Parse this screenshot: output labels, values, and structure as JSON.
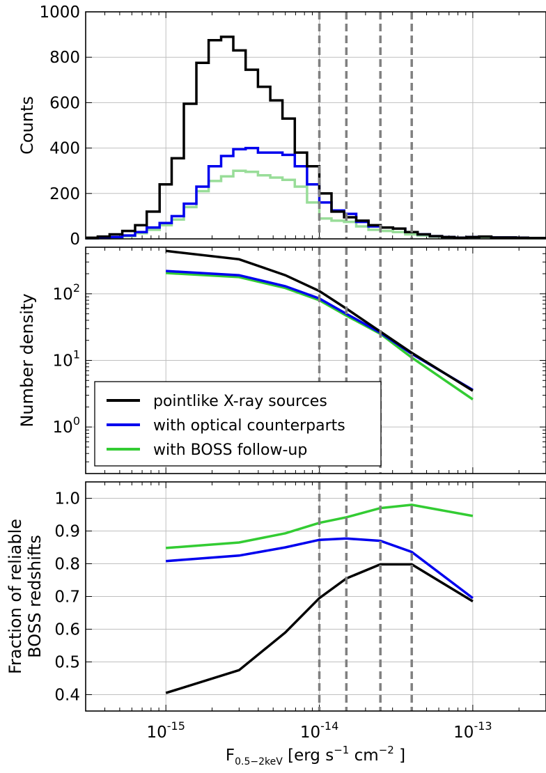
{
  "chart_data": [
    {
      "panel": "top",
      "type": "line",
      "ylabel": "Counts",
      "ylim": [
        0,
        1000
      ],
      "yticks": [
        "0",
        "200",
        "400",
        "600",
        "800",
        "1000"
      ],
      "x_scale": "log",
      "xlim": [
        3e-16,
        3e-13
      ],
      "vlines": [
        1e-14,
        1.5e-14,
        2.5e-14,
        4e-14
      ],
      "bin_edges": [
        3e-16,
        3.6e-16,
        4.3e-16,
        5.2e-16,
        6.3e-16,
        7.5e-16,
        9.1e-16,
        1.09e-15,
        1.31e-15,
        1.58e-15,
        1.9e-15,
        2.29e-15,
        2.75e-15,
        3.31e-15,
        3.98e-15,
        4.79e-15,
        5.75e-15,
        6.92e-15,
        8.32e-15,
        1e-14,
        1.2e-14,
        1.45e-14,
        1.74e-14,
        2.09e-14,
        2.51e-14,
        3.02e-14,
        3.63e-14,
        4.37e-14,
        5.25e-14,
        6.31e-14,
        7.59e-14,
        9.12e-14,
        1.1e-13,
        1.32e-13,
        1.58e-13,
        1.91e-13,
        2.29e-13,
        2.75e-13,
        3e-13
      ],
      "series": [
        {
          "name": "pointlike X-ray sources",
          "color": "#000000",
          "values": [
            5,
            10,
            20,
            35,
            60,
            120,
            240,
            355,
            595,
            775,
            875,
            890,
            830,
            745,
            670,
            610,
            530,
            380,
            320,
            200,
            120,
            95,
            80,
            60,
            50,
            45,
            30,
            20,
            12,
            8,
            5,
            8,
            10,
            6,
            6,
            5,
            4,
            4
          ]
        },
        {
          "name": "with optical counterparts",
          "color": "#0000ee",
          "values": [
            3,
            5,
            8,
            15,
            30,
            50,
            70,
            100,
            155,
            230,
            320,
            365,
            395,
            400,
            380,
            380,
            370,
            320,
            240,
            160,
            125,
            110,
            75,
            55,
            50,
            45,
            30,
            20,
            12,
            8,
            5,
            8,
            10,
            6,
            6,
            5,
            4,
            4
          ]
        },
        {
          "name": "with BOSS follow-up",
          "color": "#99dd99",
          "values": [
            2,
            4,
            6,
            12,
            25,
            40,
            60,
            85,
            140,
            210,
            255,
            275,
            300,
            295,
            280,
            270,
            260,
            230,
            160,
            90,
            80,
            75,
            55,
            40,
            35,
            30,
            20,
            15,
            10,
            6,
            4,
            6,
            8,
            5,
            5,
            4,
            3,
            3
          ]
        }
      ]
    },
    {
      "panel": "middle",
      "type": "line",
      "ylabel": "Number density",
      "y_scale": "log",
      "ylim": [
        0.2,
        500
      ],
      "ytick_values": [
        1,
        10,
        100
      ],
      "x_scale": "log",
      "xlim": [
        3e-16,
        3e-13
      ],
      "vlines": [
        1e-14,
        1.5e-14,
        2.5e-14,
        4e-14
      ],
      "legend": {
        "location": "lower-left",
        "entries": [
          "pointlike X-ray sources",
          "with optical counterparts",
          "with BOSS follow-up"
        ]
      },
      "x": [
        1e-15,
        3e-15,
        6e-15,
        1e-14,
        1.5e-14,
        2.5e-14,
        4e-14,
        1e-13
      ],
      "series": [
        {
          "name": "pointlike X-ray sources",
          "color": "#000000",
          "values": [
            440,
            330,
            190,
            110,
            60,
            27,
            13,
            3.5
          ]
        },
        {
          "name": "with optical counterparts",
          "color": "#0000ee",
          "values": [
            220,
            190,
            130,
            85,
            50,
            26,
            12.5,
            3.6
          ]
        },
        {
          "name": "with BOSS follow-up",
          "color": "#33cc33",
          "values": [
            205,
            178,
            122,
            80,
            47,
            25,
            11,
            2.6
          ]
        }
      ]
    },
    {
      "panel": "bottom",
      "type": "line",
      "ylabel_lines": [
        "Fraction of reliable",
        "BOSS redshifts"
      ],
      "ylim": [
        0.35,
        1.05
      ],
      "yticks": [
        "0.4",
        "0.5",
        "0.6",
        "0.7",
        "0.8",
        "0.9",
        "1.0"
      ],
      "x_scale": "log",
      "xlim": [
        3e-16,
        3e-13
      ],
      "xtick_exponents": [
        "-15",
        "-14",
        "-13"
      ],
      "xlabel": {
        "main": "F",
        "subscript": "0.5−2keV",
        "unit_prefix": "[erg s",
        "exp1": "−1",
        "unit_mid": "cm",
        "exp2": "−2",
        "unit_suffix": "]"
      },
      "vlines": [
        1e-14,
        1.5e-14,
        2.5e-14,
        4e-14
      ],
      "x": [
        1e-15,
        3e-15,
        6e-15,
        1e-14,
        1.5e-14,
        2.5e-14,
        4e-14,
        1e-13
      ],
      "series": [
        {
          "name": "pointlike X-ray sources",
          "color": "#000000",
          "values": [
            0.405,
            0.475,
            0.59,
            0.695,
            0.755,
            0.798,
            0.798,
            0.685
          ]
        },
        {
          "name": "with optical counterparts",
          "color": "#0000ee",
          "values": [
            0.808,
            0.825,
            0.85,
            0.873,
            0.877,
            0.87,
            0.836,
            0.695
          ]
        },
        {
          "name": "with BOSS follow-up",
          "color": "#33cc33",
          "values": [
            0.848,
            0.865,
            0.893,
            0.925,
            0.942,
            0.97,
            0.98,
            0.946
          ]
        }
      ]
    }
  ]
}
